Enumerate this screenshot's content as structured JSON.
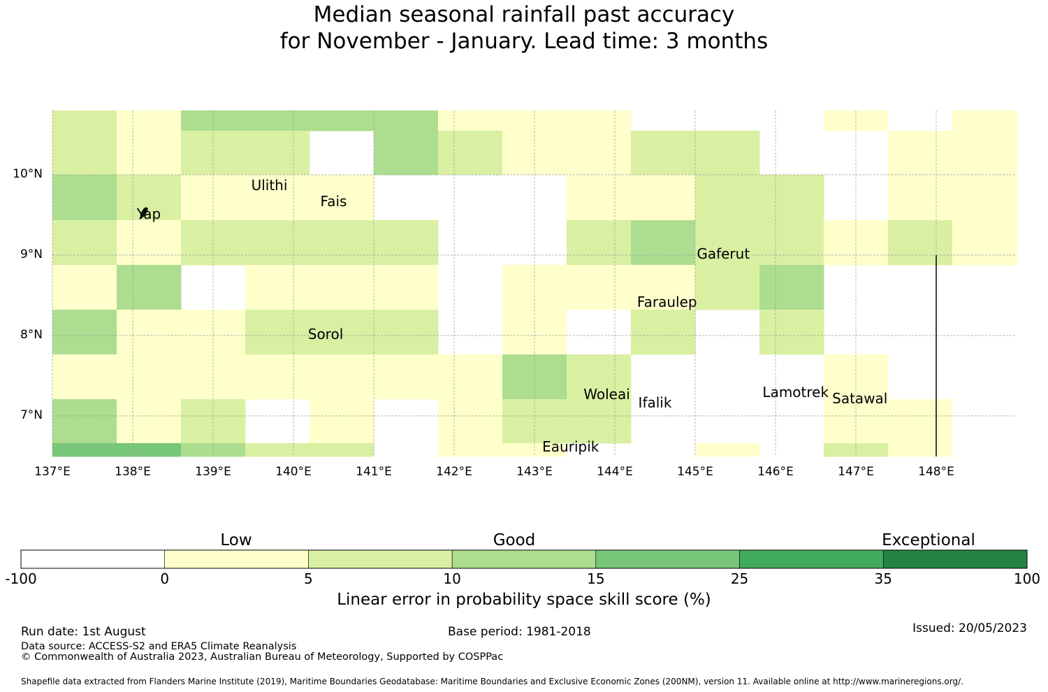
{
  "title": {
    "line1": "Median seasonal rainfall past accuracy",
    "line2": "for November - January. Lead time: 3 months"
  },
  "map": {
    "lon_range": [
      137,
      149
    ],
    "lat_range": [
      6.5,
      10.8
    ],
    "lat_ticks": [
      {
        "value": 10,
        "label": "10°N"
      },
      {
        "value": 9,
        "label": "9°N"
      },
      {
        "value": 8,
        "label": "8°N"
      },
      {
        "value": 7,
        "label": "7°N"
      }
    ],
    "lon_ticks": [
      {
        "value": 137,
        "label": "137°E"
      },
      {
        "value": 138,
        "label": "138°E"
      },
      {
        "value": 139,
        "label": "139°E"
      },
      {
        "value": 140,
        "label": "140°E"
      },
      {
        "value": 141,
        "label": "141°E"
      },
      {
        "value": 142,
        "label": "142°E"
      },
      {
        "value": 143,
        "label": "143°E"
      },
      {
        "value": 144,
        "label": "144°E"
      },
      {
        "value": 145,
        "label": "145°E"
      },
      {
        "value": 146,
        "label": "146°E"
      },
      {
        "value": 147,
        "label": "147°E"
      },
      {
        "value": 148,
        "label": "148°E"
      }
    ],
    "places": [
      {
        "name": "Ulithi",
        "lon": 139.7,
        "lat": 9.85
      },
      {
        "name": "Fais",
        "lon": 140.5,
        "lat": 9.65
      },
      {
        "name": "Yap",
        "lon": 138.2,
        "lat": 9.5
      },
      {
        "name": "Gaferut",
        "lon": 145.35,
        "lat": 9.0
      },
      {
        "name": "Faraulep",
        "lon": 144.65,
        "lat": 8.4
      },
      {
        "name": "Sorol",
        "lon": 140.4,
        "lat": 8.0
      },
      {
        "name": "Woleai",
        "lon": 143.9,
        "lat": 7.25
      },
      {
        "name": "Ifalik",
        "lon": 144.5,
        "lat": 7.15
      },
      {
        "name": "Lamotrek",
        "lon": 146.25,
        "lat": 7.28
      },
      {
        "name": "Satawal",
        "lon": 147.05,
        "lat": 7.2
      },
      {
        "name": "Eauripik",
        "lon": 143.45,
        "lat": 6.6
      }
    ],
    "boundary_line": {
      "lon": 148,
      "lat_from": 6.5,
      "lat_to": 9.0
    }
  },
  "legend": {
    "words": [
      {
        "text": "Low",
        "at": 2.5
      },
      {
        "text": "Good",
        "at": 10
      },
      {
        "text": "Exceptional",
        "at": 60
      }
    ],
    "bins": [
      {
        "from": "-100",
        "to": "0",
        "color": "#ffffff"
      },
      {
        "from": "0",
        "to": "5",
        "color": "#ffffcc"
      },
      {
        "from": "5",
        "to": "10",
        "color": "#d9f0a3"
      },
      {
        "from": "10",
        "to": "15",
        "color": "#addd8e"
      },
      {
        "from": "15",
        "to": "25",
        "color": "#78c679"
      },
      {
        "from": "25",
        "to": "35",
        "color": "#41ab5d"
      },
      {
        "from": "35",
        "to": "100",
        "color": "#238443"
      }
    ],
    "tick_labels": [
      "-100",
      "0",
      "5",
      "10",
      "15",
      "25",
      "35",
      "100"
    ],
    "label": "Linear error in probability space skill score (%)"
  },
  "grid": {
    "cols": 15,
    "rows": [
      [
        2,
        1,
        3,
        3,
        3,
        3,
        1,
        1,
        1,
        0,
        0,
        0,
        1,
        0,
        1
      ],
      [
        2,
        1,
        2,
        2,
        0,
        3,
        2,
        1,
        1,
        2,
        2,
        0,
        0,
        1,
        1
      ],
      [
        3,
        2,
        1,
        1,
        1,
        0,
        0,
        0,
        1,
        1,
        2,
        2,
        0,
        1,
        1
      ],
      [
        2,
        1,
        2,
        2,
        2,
        2,
        0,
        0,
        2,
        3,
        2,
        2,
        1,
        2,
        1
      ],
      [
        1,
        3,
        0,
        1,
        1,
        1,
        0,
        1,
        1,
        1,
        2,
        3,
        0,
        0,
        0
      ],
      [
        3,
        1,
        1,
        2,
        2,
        2,
        0,
        1,
        0,
        2,
        0,
        2,
        0,
        0,
        0
      ],
      [
        1,
        1,
        1,
        1,
        1,
        1,
        1,
        3,
        2,
        0,
        0,
        0,
        1,
        0,
        0
      ],
      [
        3,
        1,
        2,
        0,
        1,
        0,
        1,
        2,
        2,
        0,
        0,
        0,
        1,
        1,
        0
      ],
      [
        4,
        4,
        3,
        2,
        2,
        0,
        1,
        1,
        0,
        0,
        1,
        0,
        2,
        1,
        0
      ]
    ],
    "colors": [
      "#ffffff",
      "#ffffcc",
      "#d9f0a3",
      "#addd8e",
      "#78c679"
    ]
  },
  "footer": {
    "run_date": "Run date: 1st August",
    "base_period": "Base period: 1981-2018",
    "issued": "Issued: 20/05/2023",
    "data_source": "Data source: ACCESS-S2 and ERA5 Climate Reanalysis",
    "copyright": "© Commonwealth of Australia 2023, Australian Bureau of Meteorology, Supported by COSPPac",
    "shapefile": "Shapefile data extracted from Flanders Marine Institute (2019), Maritime Boundaries Geodatabase: Maritime Boundaries and Exclusive Economic Zones (200NM), version 11. Available online at http://www.marineregions.org/."
  }
}
